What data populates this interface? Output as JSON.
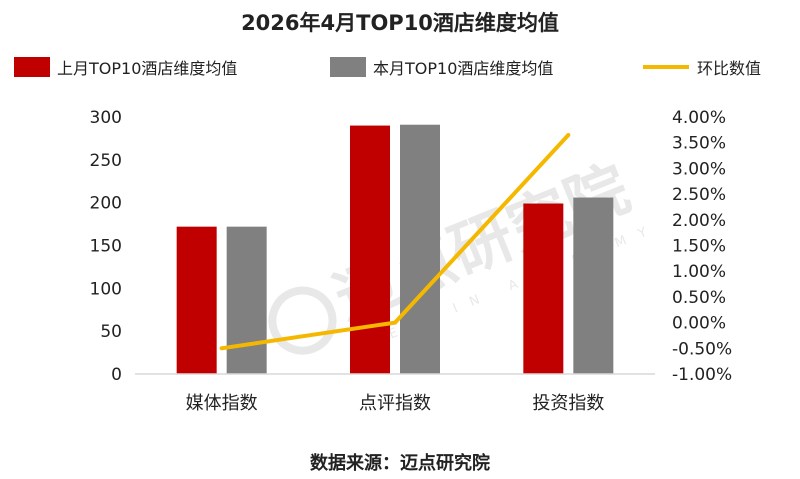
{
  "chart_data": {
    "type": "bar",
    "title": "2026年4月TOP10酒店维度均值",
    "categories": [
      "媒体指数",
      "点评指数",
      "投资指数"
    ],
    "series": [
      {
        "name": "上月TOP10酒店维度均值",
        "type": "bar",
        "axis": "left",
        "color": "#C00000",
        "values": [
          172,
          290,
          199
        ]
      },
      {
        "name": "本月TOP10酒店维度均值",
        "type": "bar",
        "axis": "left",
        "color": "#808080",
        "values": [
          172,
          291,
          206
        ]
      },
      {
        "name": "环比数值",
        "type": "line",
        "axis": "right",
        "color": "#F5B800",
        "values": [
          -0.5,
          0.0,
          3.65
        ]
      }
    ],
    "ylim_left": [
      0,
      300
    ],
    "yticks_left": [
      "0",
      "50",
      "100",
      "150",
      "200",
      "250",
      "300"
    ],
    "ylim_right": [
      -1.0,
      4.0
    ],
    "yticks_right": [
      "-1.00%",
      "-0.50%",
      "0.00%",
      "0.50%",
      "1.00%",
      "1.50%",
      "2.00%",
      "2.50%",
      "3.00%",
      "3.50%",
      "4.00%"
    ],
    "grid": false,
    "legend_position": "top"
  },
  "source_note": "数据来源：迈点研究院",
  "watermark": {
    "name": "迈点研究院",
    "subtitle": "MEADIN ACADEMY"
  }
}
